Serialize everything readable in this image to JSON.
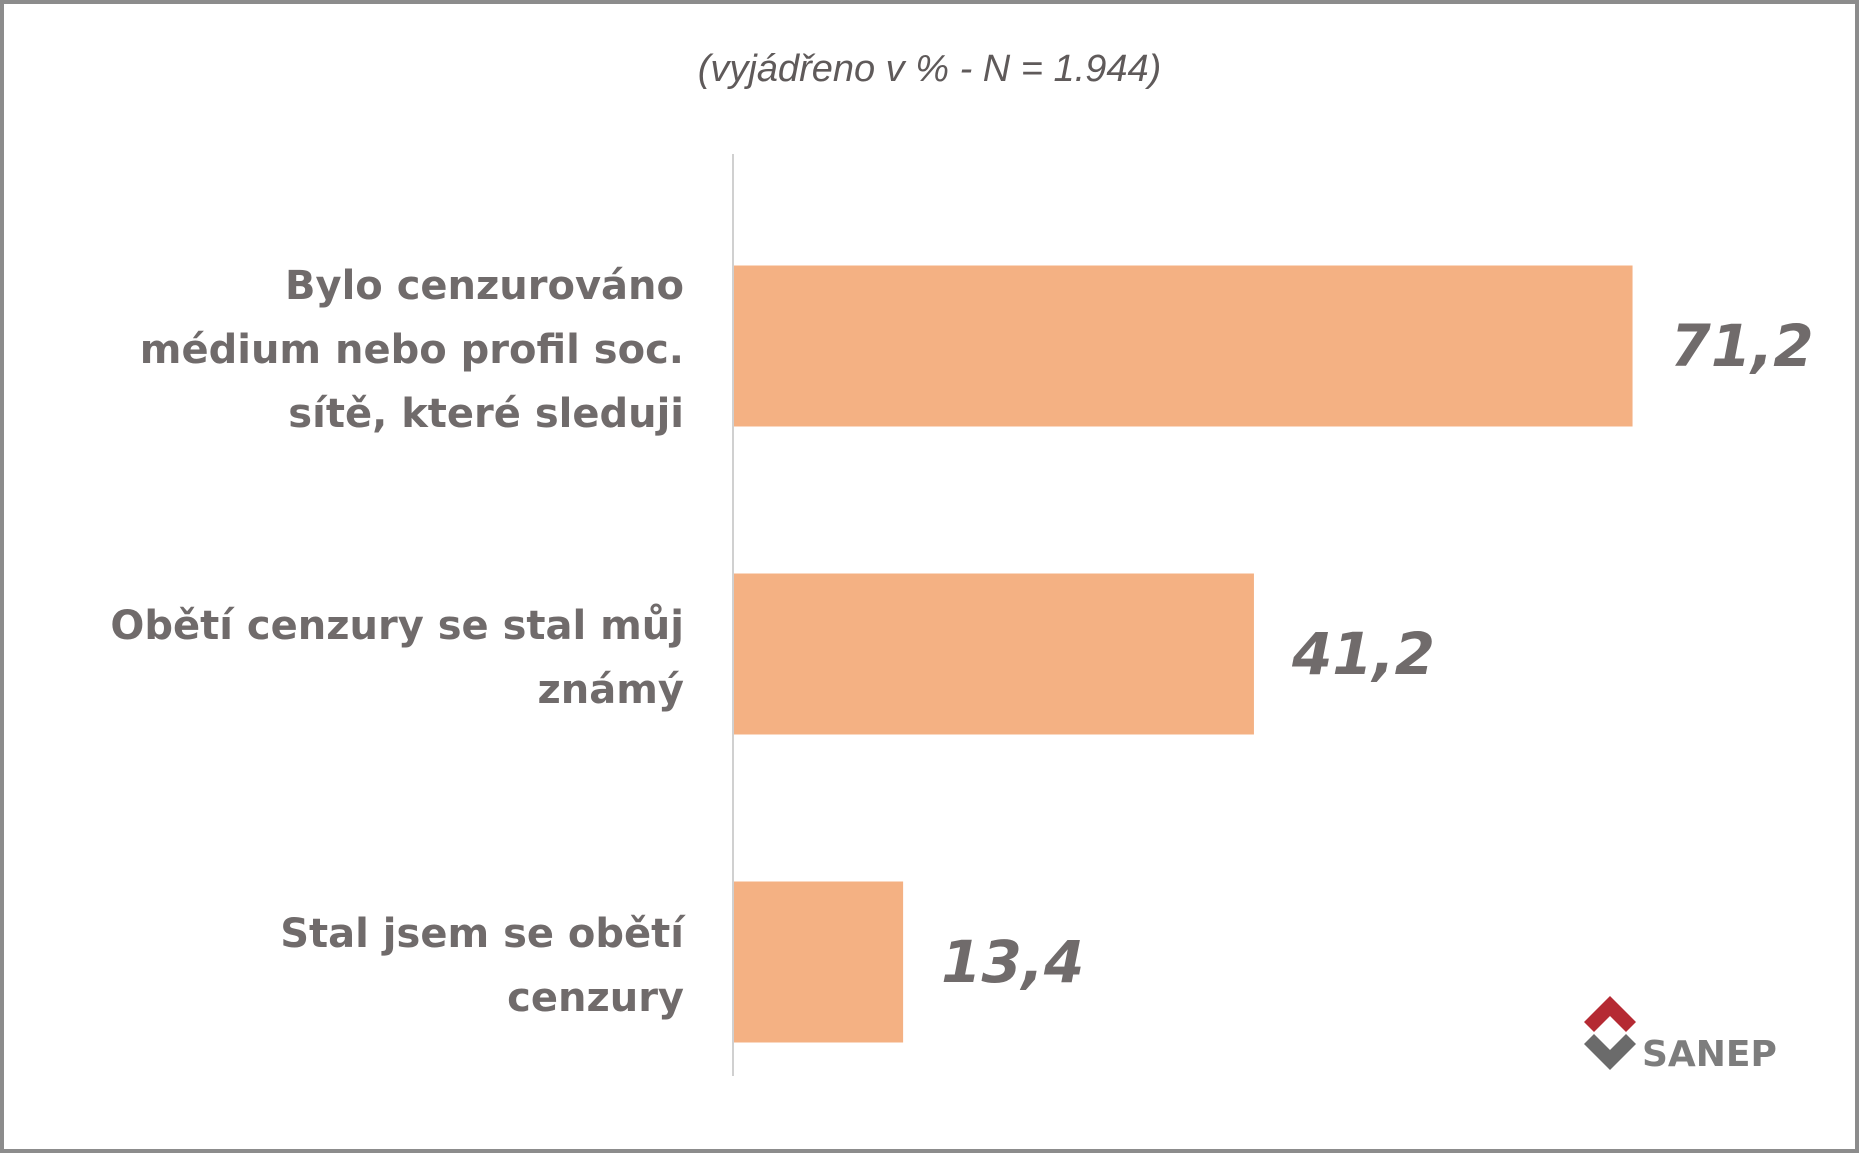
{
  "chart_data": {
    "type": "bar",
    "orientation": "horizontal",
    "subtitle": "(vyjádřeno v % - N = 1.944)",
    "categories": [
      "Bylo cenzurováno médium nebo profil soc. sítě, které sleduji",
      "Obětí cenzury se stal můj známý",
      "Stal jsem se obětí cenzury"
    ],
    "values": [
      71.2,
      41.2,
      13.4
    ],
    "value_labels": [
      "71,2",
      "41,2",
      "13,4"
    ],
    "color": "#f4b183"
  },
  "logo": "SANEP"
}
